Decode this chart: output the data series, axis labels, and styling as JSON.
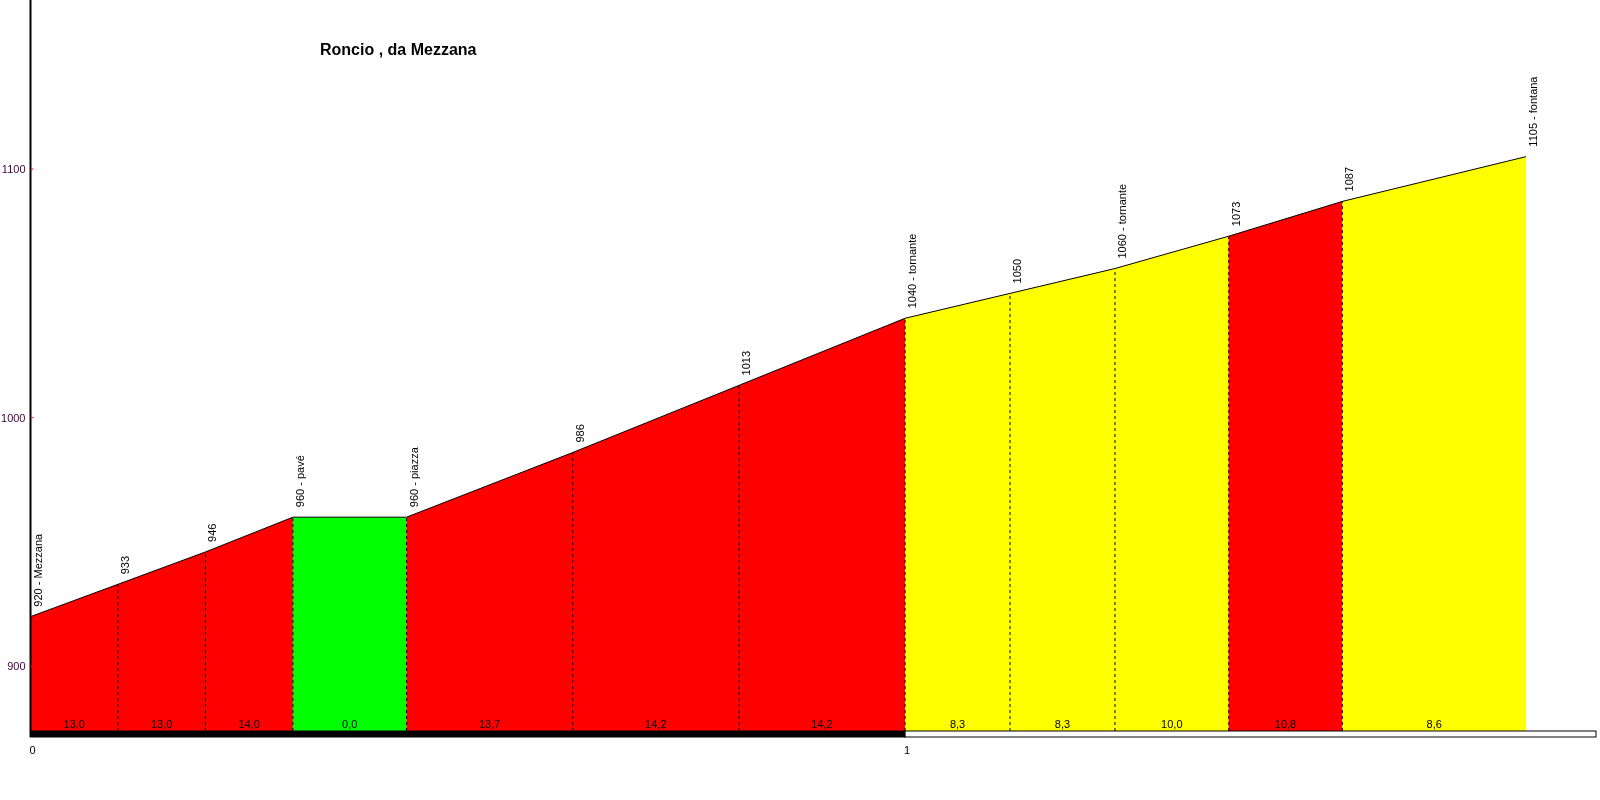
{
  "chart_data": {
    "type": "area",
    "title": "Roncio , da Mezzana",
    "series": [
      {
        "color": "#ff0000",
        "x": [
          0,
          0.1,
          0.2,
          0.3
        ],
        "values": [
          920,
          933,
          946,
          960
        ],
        "value_labels": [
          "920 - Mezzana",
          "933",
          "946",
          "960 - pavé"
        ]
      },
      {
        "color": "#00ff00",
        "x": [
          0.3,
          0.43
        ],
        "values": [
          960,
          960
        ],
        "value_labels": [
          null,
          "960 - piazza"
        ]
      },
      {
        "color": "#ff0000",
        "x": [
          0.43,
          0.62,
          0.81,
          1.0
        ],
        "values": [
          960,
          986,
          1013,
          1040
        ],
        "value_labels": [
          null,
          "986",
          "1013",
          "1040 - tornante"
        ]
      },
      {
        "color": "#ffff00",
        "x": [
          1.0,
          1.12,
          1.24,
          1.37
        ],
        "values": [
          1040,
          1050,
          1060,
          1073
        ],
        "value_labels": [
          null,
          "1050",
          "1060 - tornante",
          "1073"
        ]
      },
      {
        "color": "#ff0000",
        "x": [
          1.37,
          1.5
        ],
        "values": [
          1073,
          1087
        ],
        "value_labels": [
          null,
          "1087"
        ]
      },
      {
        "color": "#ffff00",
        "x": [
          1.5,
          1.71
        ],
        "values": [
          1087,
          1105
        ],
        "value_labels": [
          null,
          "1105 - fontana"
        ]
      }
    ],
    "annotations": [
      "13,0",
      "13,0",
      "14,0",
      "0,0",
      "13,7",
      "14,2",
      "14,2",
      "8,3",
      "8,3",
      "10,0",
      "10,8",
      "8,6"
    ],
    "xlim": [
      0,
      1.79
    ],
    "ylim": [
      874,
      1168
    ],
    "xticks": [
      0,
      1
    ],
    "yticks": [
      900,
      1000,
      1100
    ]
  }
}
